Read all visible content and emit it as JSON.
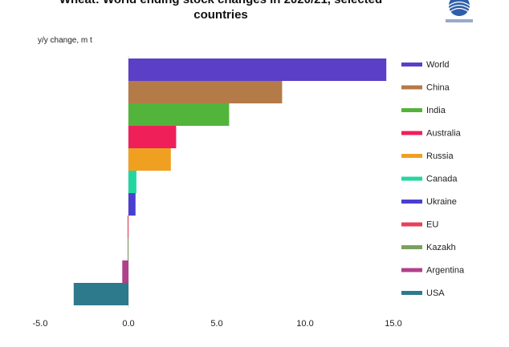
{
  "chart_data": {
    "type": "bar",
    "orientation": "horizontal",
    "title_line1": "Wheat: World ending stock changes in 2020/21, selected",
    "title_line2": "countries",
    "ylabel": "y/y change, m t",
    "xlim": [
      -5,
      15
    ],
    "xticks": [
      "-5.0",
      "0.0",
      "5.0",
      "10.0",
      "15.0"
    ],
    "grid": false,
    "legend_placement": "right",
    "categories": [
      "World",
      "China",
      "India",
      "Australia",
      "Russia",
      "Canada",
      "Ukraine",
      "EU",
      "Kazakh",
      "Argentina",
      "USA"
    ],
    "values": [
      14.6,
      8.7,
      5.7,
      2.7,
      2.4,
      0.45,
      0.4,
      -0.05,
      -0.05,
      -0.35,
      -3.1
    ],
    "colors": [
      "#5b3fc6",
      "#b47a47",
      "#53b43b",
      "#ef1f5a",
      "#f0a020",
      "#23d6a0",
      "#4a3fd0",
      "#e8405a",
      "#7aa060",
      "#b0408a",
      "#2c7a8c"
    ]
  }
}
